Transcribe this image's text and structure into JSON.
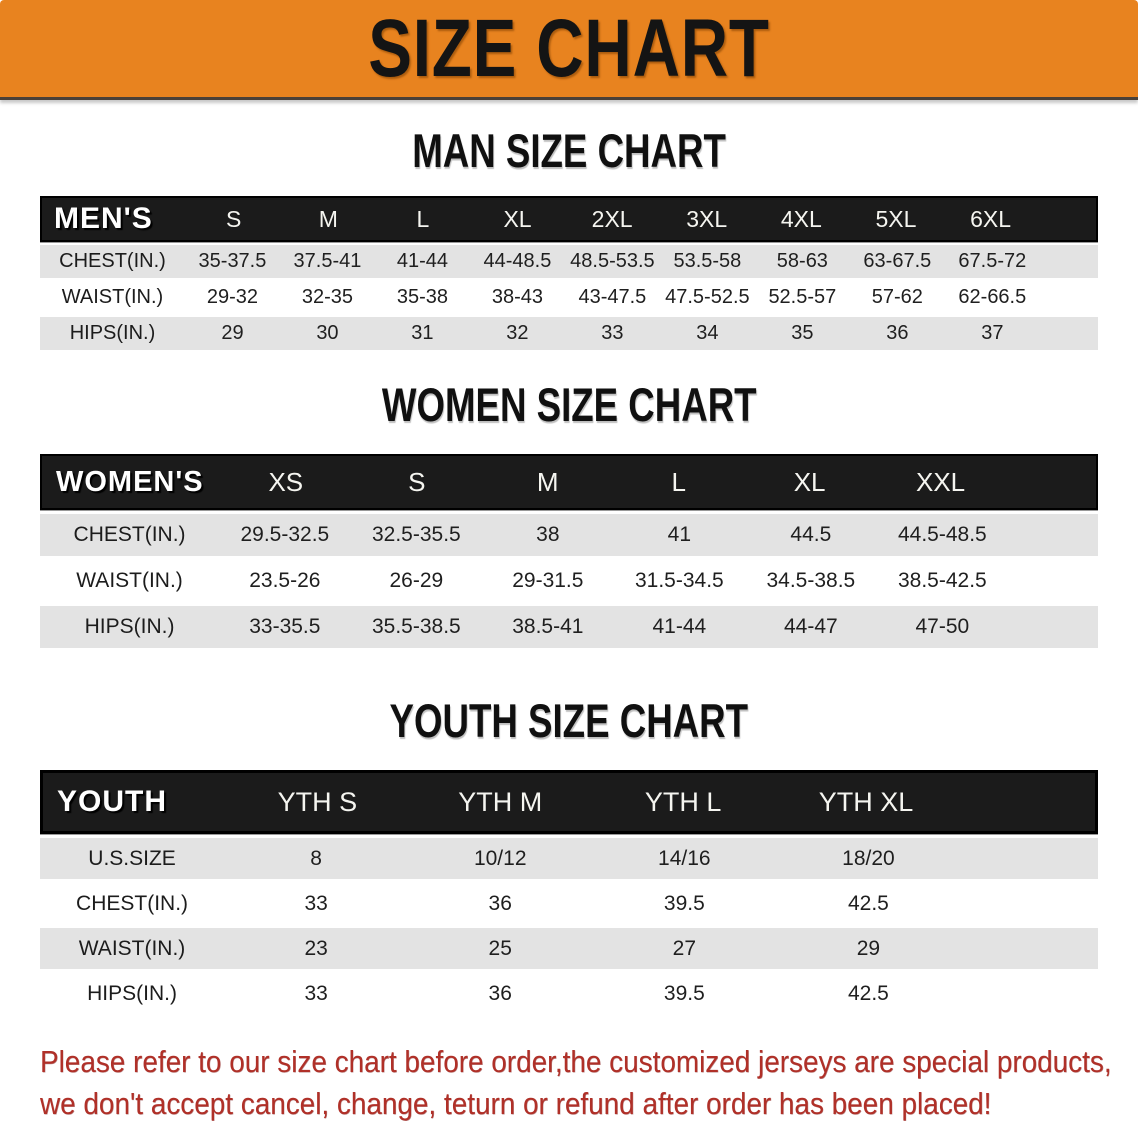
{
  "banner": {
    "title": "SIZE CHART",
    "background_color": "#E8831F",
    "text_color": "#141414"
  },
  "sections": [
    {
      "id": "men",
      "heading": "MAN SIZE CHART",
      "table": {
        "label": "MEN'S",
        "columns": [
          "S",
          "M",
          "L",
          "XL",
          "2XL",
          "3XL",
          "4XL",
          "5XL",
          "6XL"
        ],
        "rows": [
          {
            "label": "CHEST(IN.)",
            "values": [
              "35-37.5",
              "37.5-41",
              "41-44",
              "44-48.5",
              "48.5-53.5",
              "53.5-58",
              "58-63",
              "63-67.5",
              "67.5-72"
            ]
          },
          {
            "label": "WAIST(IN.)",
            "values": [
              "29-32",
              "32-35",
              "35-38",
              "38-43",
              "43-47.5",
              "47.5-52.5",
              "52.5-57",
              "57-62",
              "62-66.5"
            ]
          },
          {
            "label": "HIPS(IN.)",
            "values": [
              "29",
              "30",
              "31",
              "32",
              "33",
              "34",
              "35",
              "36",
              "37"
            ]
          }
        ]
      }
    },
    {
      "id": "women",
      "heading": "WOMEN SIZE CHART",
      "table": {
        "label": "WOMEN'S",
        "columns": [
          "XS",
          "S",
          "M",
          "L",
          "XL",
          "XXL"
        ],
        "rows": [
          {
            "label": "CHEST(IN.)",
            "values": [
              "29.5-32.5",
              "32.5-35.5",
              "38",
              "41",
              "44.5",
              "44.5-48.5"
            ]
          },
          {
            "label": "WAIST(IN.)",
            "values": [
              "23.5-26",
              "26-29",
              "29-31.5",
              "31.5-34.5",
              "34.5-38.5",
              "38.5-42.5"
            ]
          },
          {
            "label": "HIPS(IN.)",
            "values": [
              "33-35.5",
              "35.5-38.5",
              "38.5-41",
              "41-44",
              "44-47",
              "47-50"
            ]
          }
        ]
      }
    },
    {
      "id": "youth",
      "heading": "YOUTH SIZE CHART",
      "table": {
        "label": "YOUTH",
        "columns": [
          "YTH S",
          "YTH M",
          "YTH L",
          "YTH XL"
        ],
        "rows": [
          {
            "label": "U.S.SIZE",
            "values": [
              "8",
              "10/12",
              "14/16",
              "18/20"
            ]
          },
          {
            "label": "CHEST(IN.)",
            "values": [
              "33",
              "36",
              "39.5",
              "42.5"
            ]
          },
          {
            "label": "WAIST(IN.)",
            "values": [
              "23",
              "25",
              "27",
              "29"
            ]
          },
          {
            "label": "HIPS(IN.)",
            "values": [
              "33",
              "36",
              "39.5",
              "42.5"
            ]
          }
        ]
      }
    }
  ],
  "footnote": {
    "line1": "Please refer to our size chart before order,the customized jerseys are special products,",
    "line2": "we don't accept cancel, change, teturn or refund after order has been placed!",
    "color": "#B03028"
  },
  "colors": {
    "banner_orange": "#E8831F",
    "header_bar_black": "#1B1B1B",
    "shaded_row_gray": "#E3E3E3",
    "footnote_red": "#B03028"
  }
}
